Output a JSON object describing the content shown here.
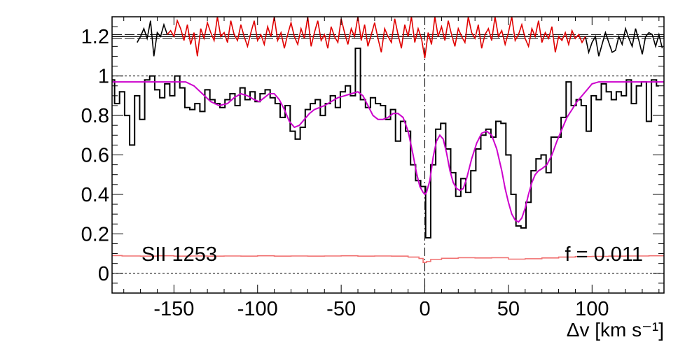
{
  "chart_data": {
    "type": "line",
    "title": "",
    "xlabel": "Δv [km s⁻¹]",
    "ylabel": "",
    "xlim": [
      -187,
      143
    ],
    "ylim": [
      -0.1,
      1.3
    ],
    "x_ticks": [
      -150,
      -100,
      -50,
      0,
      50,
      100
    ],
    "x_tick_labels": [
      "-150",
      "-100",
      "-50",
      "0",
      "50",
      "100"
    ],
    "y_ticks": [
      0,
      0.2,
      0.4,
      0.6,
      0.8,
      1,
      1.2
    ],
    "y_tick_labels": [
      "0",
      "0.2",
      "0.4",
      "0.6",
      "0.8",
      "1",
      "1.2"
    ],
    "annotations": {
      "line_label": "SII 1253",
      "fraction_label": "f = 0.011"
    },
    "reference_lines": {
      "continuum": 1.0,
      "zero": 0.0,
      "residual_zero": 1.2,
      "residual_band": [
        1.19,
        1.21
      ],
      "velocity_zero": 0
    },
    "colors": {
      "flux": "#000000",
      "model": "#cc00cc",
      "residual": "#e00000",
      "error": "#f07070",
      "residual_outer": "#000000"
    },
    "series": [
      {
        "key": "flux",
        "x": [
          -187,
          -184,
          -181,
          -178,
          -175,
          -172,
          -169,
          -166,
          -163,
          -160,
          -157,
          -154,
          -151,
          -148,
          -145,
          -142,
          -139,
          -136,
          -133,
          -130,
          -127,
          -124,
          -121,
          -118,
          -115,
          -112,
          -109,
          -106,
          -103,
          -100,
          -97,
          -94,
          -91,
          -88,
          -85,
          -82,
          -79,
          -76,
          -73,
          -70,
          -67,
          -64,
          -61,
          -58,
          -55,
          -52,
          -49,
          -46,
          -43,
          -40,
          -37,
          -34,
          -31,
          -28,
          -25,
          -22,
          -19,
          -16,
          -13,
          -10,
          -7,
          -4,
          -1,
          2,
          5,
          8,
          11,
          14,
          17,
          20,
          23,
          26,
          29,
          32,
          35,
          38,
          41,
          44,
          47,
          50,
          53,
          56,
          59,
          62,
          65,
          68,
          71,
          74,
          77,
          80,
          83,
          86,
          89,
          92,
          95,
          98,
          101,
          104,
          107,
          110,
          113,
          116,
          119,
          122,
          125,
          128,
          131,
          134,
          137,
          140
        ],
        "y": [
          0.98,
          0.86,
          0.92,
          0.8,
          0.65,
          0.9,
          0.78,
          0.98,
          1.0,
          0.93,
          0.89,
          0.96,
          0.9,
          1.0,
          0.94,
          0.84,
          0.83,
          0.86,
          0.82,
          0.93,
          0.88,
          0.86,
          0.84,
          0.88,
          0.91,
          0.85,
          0.94,
          0.88,
          0.92,
          0.87,
          0.91,
          0.93,
          0.89,
          0.86,
          0.79,
          0.85,
          0.72,
          0.68,
          0.74,
          0.83,
          0.86,
          0.88,
          0.8,
          0.86,
          0.9,
          0.84,
          0.92,
          0.95,
          0.9,
          1.14,
          0.88,
          0.84,
          0.89,
          0.86,
          0.85,
          0.78,
          0.83,
          0.67,
          0.77,
          0.72,
          0.55,
          0.47,
          0.44,
          0.18,
          0.55,
          0.73,
          0.76,
          0.63,
          0.51,
          0.39,
          0.48,
          0.41,
          0.52,
          0.63,
          0.7,
          0.73,
          0.69,
          0.77,
          0.76,
          0.6,
          0.4,
          0.24,
          0.23,
          0.36,
          0.52,
          0.58,
          0.6,
          0.51,
          0.69,
          0.69,
          0.79,
          0.97,
          0.85,
          0.88,
          0.85,
          0.72,
          0.9,
          0.88,
          0.96,
          0.92,
          0.88,
          0.92,
          0.9,
          0.98,
          0.86,
          0.95,
          0.97,
          0.77,
          0.98,
          0.95
        ]
      },
      {
        "key": "model",
        "x": [
          -187,
          -170,
          -150,
          -143,
          -138,
          -133,
          -128,
          -123,
          -118,
          -114,
          -110,
          -106,
          -102,
          -99,
          -96,
          -93,
          -90,
          -87,
          -84,
          -81,
          -78,
          -75,
          -72,
          -69,
          -66,
          -63,
          -60,
          -56,
          -52,
          -48,
          -44,
          -40,
          -37,
          -34,
          -31,
          -28,
          -25,
          -22,
          -19,
          -16,
          -13,
          -10,
          -7,
          -5,
          -3,
          -1,
          0,
          1,
          3,
          5,
          7,
          9,
          11,
          13,
          15,
          17,
          19,
          21,
          23,
          25,
          28,
          31,
          34,
          37,
          40,
          43,
          46,
          48,
          50,
          52,
          54,
          56,
          58,
          60,
          62,
          64,
          66,
          68,
          70,
          73,
          76,
          79,
          82,
          85,
          88,
          91,
          94,
          97,
          100,
          104,
          110,
          120,
          130,
          143
        ],
        "y": [
          0.97,
          0.97,
          0.97,
          0.97,
          0.95,
          0.91,
          0.87,
          0.85,
          0.86,
          0.89,
          0.91,
          0.9,
          0.88,
          0.87,
          0.89,
          0.91,
          0.91,
          0.88,
          0.83,
          0.77,
          0.74,
          0.75,
          0.78,
          0.81,
          0.83,
          0.84,
          0.85,
          0.87,
          0.89,
          0.9,
          0.91,
          0.92,
          0.9,
          0.85,
          0.8,
          0.78,
          0.78,
          0.79,
          0.81,
          0.81,
          0.79,
          0.72,
          0.6,
          0.51,
          0.44,
          0.41,
          0.4,
          0.41,
          0.47,
          0.59,
          0.67,
          0.7,
          0.68,
          0.61,
          0.52,
          0.46,
          0.43,
          0.42,
          0.43,
          0.48,
          0.58,
          0.66,
          0.71,
          0.72,
          0.7,
          0.63,
          0.52,
          0.43,
          0.36,
          0.3,
          0.27,
          0.26,
          0.28,
          0.33,
          0.4,
          0.46,
          0.5,
          0.52,
          0.53,
          0.55,
          0.6,
          0.67,
          0.73,
          0.79,
          0.83,
          0.87,
          0.9,
          0.93,
          0.96,
          0.97,
          0.97,
          0.97,
          0.97,
          0.97
        ]
      },
      {
        "key": "residual",
        "x": [
          -154,
          -152,
          -150,
          -148,
          -146,
          -144,
          -142,
          -140,
          -138,
          -136,
          -134,
          -132,
          -130,
          -128,
          -126,
          -124,
          -122,
          -120,
          -118,
          -116,
          -114,
          -112,
          -110,
          -108,
          -106,
          -104,
          -102,
          -100,
          -98,
          -96,
          -94,
          -92,
          -90,
          -88,
          -86,
          -84,
          -82,
          -80,
          -78,
          -76,
          -74,
          -72,
          -70,
          -68,
          -66,
          -64,
          -62,
          -60,
          -58,
          -56,
          -54,
          -52,
          -50,
          -48,
          -46,
          -44,
          -42,
          -40,
          -38,
          -36,
          -34,
          -32,
          -30,
          -28,
          -26,
          -24,
          -22,
          -20,
          -18,
          -16,
          -14,
          -12,
          -10,
          -8,
          -6,
          -4,
          -2,
          0,
          2,
          4,
          6,
          8,
          10,
          12,
          14,
          16,
          18,
          20,
          22,
          24,
          26,
          28,
          30,
          32,
          34,
          36,
          38,
          40,
          42,
          44,
          46,
          48,
          50,
          52,
          54,
          56,
          58,
          60,
          62,
          64,
          66,
          68,
          70,
          72,
          74,
          76,
          78,
          80,
          82,
          84,
          86,
          88,
          90,
          92,
          94,
          96
        ],
        "y": [
          1.21,
          1.23,
          1.2,
          1.28,
          1.24,
          1.18,
          1.26,
          1.16,
          1.22,
          1.1,
          1.24,
          1.19,
          1.27,
          1.22,
          1.18,
          1.3,
          1.2,
          1.22,
          1.17,
          1.28,
          1.21,
          1.18,
          1.26,
          1.2,
          1.15,
          1.22,
          1.28,
          1.18,
          1.21,
          1.16,
          1.25,
          1.2,
          1.3,
          1.18,
          1.22,
          1.14,
          1.21,
          1.27,
          1.2,
          1.16,
          1.24,
          1.19,
          1.3,
          1.15,
          1.22,
          1.28,
          1.18,
          1.21,
          1.14,
          1.25,
          1.2,
          1.17,
          1.29,
          1.22,
          1.16,
          1.24,
          1.2,
          1.3,
          1.18,
          1.26,
          1.15,
          1.21,
          1.27,
          1.19,
          1.12,
          1.24,
          1.2,
          1.17,
          1.29,
          1.21,
          1.14,
          1.26,
          1.2,
          1.3,
          1.17,
          1.24,
          1.19,
          1.09,
          1.22,
          1.16,
          1.3,
          1.2,
          1.25,
          1.18,
          1.28,
          1.21,
          1.15,
          1.24,
          1.2,
          1.17,
          1.3,
          1.22,
          1.19,
          1.26,
          1.14,
          1.21,
          1.24,
          1.18,
          1.3,
          1.2,
          1.23,
          1.16,
          1.22,
          1.3,
          1.18,
          1.21,
          1.26,
          1.19,
          1.15,
          1.24,
          1.2,
          1.28,
          1.17,
          1.22,
          1.19,
          1.25,
          1.12,
          1.2,
          1.18,
          1.22,
          1.16,
          1.23,
          1.19,
          1.21,
          1.17,
          1.2
        ]
      },
      {
        "key": "residual_left",
        "x": [
          -172,
          -170,
          -168,
          -166,
          -164,
          -162,
          -160,
          -158,
          -156,
          -154
        ],
        "y": [
          1.17,
          1.2,
          1.24,
          1.19,
          1.28,
          1.1,
          1.22,
          1.2,
          1.26,
          1.21
        ]
      },
      {
        "key": "residual_right",
        "x": [
          96,
          98,
          100,
          102,
          104,
          106,
          108,
          110,
          112,
          114,
          116,
          118,
          120,
          122,
          124,
          126,
          128,
          130,
          132,
          134,
          136,
          138,
          140,
          142
        ],
        "y": [
          1.2,
          1.12,
          1.17,
          1.2,
          1.1,
          1.16,
          1.22,
          1.17,
          1.12,
          1.13,
          1.2,
          1.16,
          1.24,
          1.19,
          1.15,
          1.24,
          1.18,
          1.11,
          1.2,
          1.22,
          1.21,
          1.15,
          1.21,
          1.14
        ]
      },
      {
        "key": "error",
        "x": [
          -187,
          -175,
          -165,
          -155,
          -145,
          -135,
          -125,
          -115,
          -105,
          -95,
          -85,
          -75,
          -65,
          -55,
          -45,
          -35,
          -25,
          -15,
          -5,
          -2,
          0,
          2,
          5,
          15,
          25,
          35,
          45,
          55,
          65,
          75,
          85,
          95,
          105,
          115,
          125,
          143
        ],
        "y": [
          0.09,
          0.088,
          0.087,
          0.089,
          0.087,
          0.088,
          0.087,
          0.088,
          0.087,
          0.089,
          0.087,
          0.088,
          0.087,
          0.088,
          0.089,
          0.087,
          0.088,
          0.087,
          0.082,
          0.075,
          0.055,
          0.06,
          0.07,
          0.076,
          0.079,
          0.078,
          0.079,
          0.072,
          0.074,
          0.078,
          0.082,
          0.085,
          0.086,
          0.087,
          0.088,
          0.089
        ]
      }
    ]
  }
}
